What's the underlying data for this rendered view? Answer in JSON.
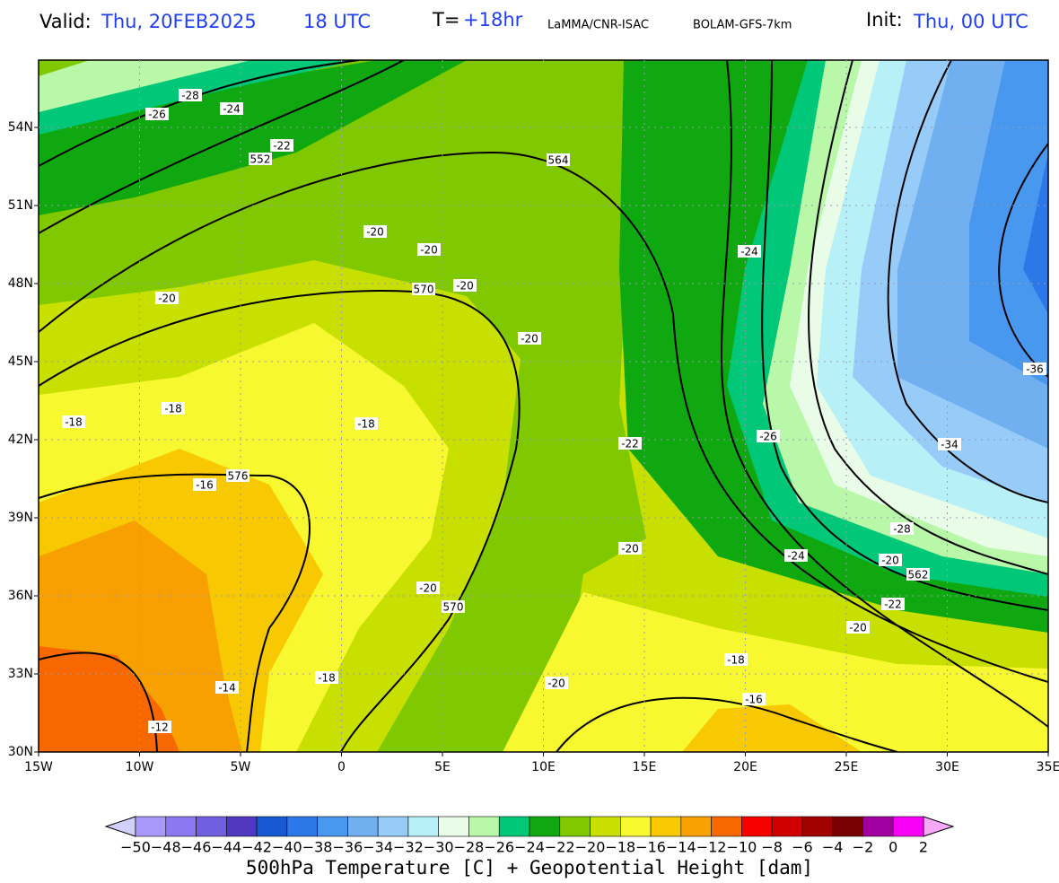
{
  "header": {
    "valid_label": "Valid:",
    "valid_date": "Thu, 20FEB2025",
    "valid_time": "18 UTC",
    "lead_label": "T=",
    "lead": "+18hr",
    "source": "LaMMA/CNR-ISAC",
    "model": "BOLAM-GFS-7km",
    "init_label": "Init:",
    "init": "Thu, 00 UTC"
  },
  "map": {
    "lat_labels": [
      "54N",
      "51N",
      "48N",
      "45N",
      "42N",
      "39N",
      "36N",
      "33N",
      "30N"
    ],
    "lon_labels": [
      "15W",
      "10W",
      "5W",
      "0",
      "5E",
      "10E",
      "15E",
      "20E",
      "25E",
      "30E",
      "35E"
    ],
    "contour_labels": [
      "-26",
      "-28",
      "-24",
      "-22",
      "552",
      "564",
      "-20",
      "-20",
      "-20",
      "570",
      "-20",
      "-20",
      "-24",
      "-36",
      "-18",
      "-18",
      "-18",
      "-26",
      "-22",
      "-34",
      "576",
      "-16",
      "-28",
      "-20",
      "-24",
      "-20",
      "562",
      "-20",
      "570",
      "-22",
      "-20",
      "-18",
      "-18",
      "-20",
      "-14",
      "-16",
      "-12"
    ]
  },
  "colorbar": {
    "labels": [
      "−50",
      "−48",
      "−46",
      "−44",
      "−42",
      "−40",
      "−38",
      "−36",
      "−34",
      "−32",
      "−30",
      "−28",
      "−26",
      "−24",
      "−22",
      "−20",
      "−18",
      "−16",
      "−14",
      "−12",
      "−10",
      "−8",
      "−6",
      "−4",
      "−2",
      "0",
      "2"
    ],
    "title": "500hPa Temperature [C] + Geopotential Height [dam]"
  }
}
